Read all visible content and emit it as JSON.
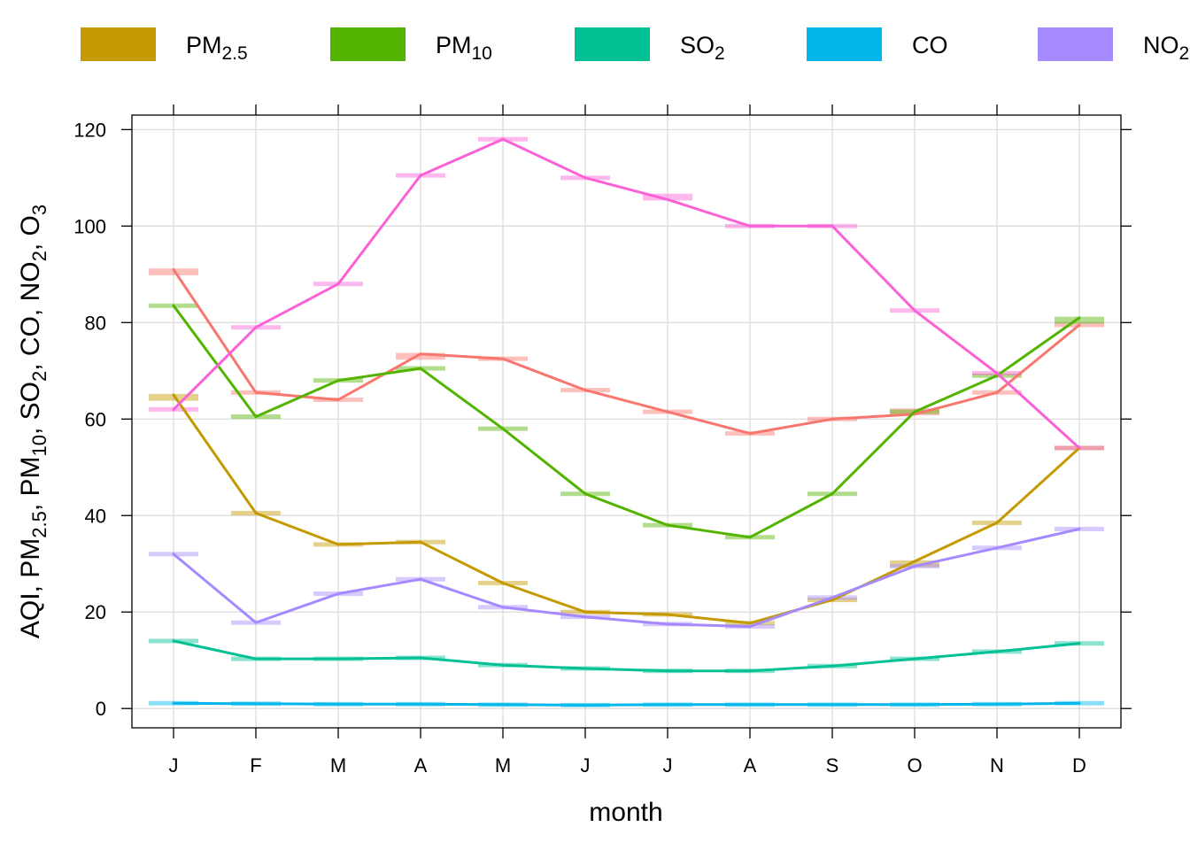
{
  "chart_data": {
    "type": "line",
    "xlabel": "month",
    "ylabel": {
      "parts": [
        {
          "text": "AQI, PM"
        },
        {
          "text": "2.5",
          "sub": true
        },
        {
          "text": ", PM"
        },
        {
          "text": "10",
          "sub": true
        },
        {
          "text": ", SO"
        },
        {
          "text": "2",
          "sub": true
        },
        {
          "text": ", CO, NO"
        },
        {
          "text": "2",
          "sub": true
        },
        {
          "text": ", O"
        },
        {
          "text": "3",
          "sub": true
        }
      ]
    },
    "categories": [
      "J",
      "F",
      "M",
      "A",
      "M",
      "J",
      "J",
      "A",
      "S",
      "O",
      "N",
      "D"
    ],
    "ylim": [
      -4,
      123
    ],
    "yticks": [
      0,
      20,
      40,
      60,
      80,
      100,
      120
    ],
    "grid": true,
    "legend": {
      "position": "top",
      "entries": [
        {
          "base": "PM",
          "sub": "2.5",
          "color": "#C49A00"
        },
        {
          "base": "PM",
          "sub": "10",
          "color": "#53B400"
        },
        {
          "base": "SO",
          "sub": "2",
          "color": "#00C094"
        },
        {
          "base": "CO",
          "sub": "",
          "color": "#00B6EB"
        },
        {
          "base": "NO",
          "sub": "2",
          "color": "#A58AFF"
        }
      ]
    },
    "series": [
      {
        "color": "#F8766D",
        "values": [
          91,
          65.5,
          64,
          73.5,
          72.5,
          66,
          61.5,
          57,
          60,
          61,
          65.5,
          79.5
        ],
        "markers": [
          90.5,
          65.5,
          64,
          73,
          72.5,
          66,
          61.5,
          57,
          60,
          61.5,
          65.5,
          79.5
        ]
      },
      {
        "color": "#C49A00",
        "values": [
          65,
          40.5,
          34,
          34.5,
          26,
          20,
          19.5,
          17.7,
          22.5,
          30.5,
          38.5,
          54
        ],
        "markers": [
          64.5,
          40.5,
          34,
          34.5,
          26,
          20,
          19.5,
          17.7,
          22.5,
          30,
          38.5,
          54
        ]
      },
      {
        "color": "#53B400",
        "values": [
          83.5,
          60.5,
          68,
          70.5,
          58,
          44.5,
          38,
          35.5,
          44.5,
          61.5,
          69,
          81
        ],
        "markers": [
          83.5,
          60.5,
          68,
          70.5,
          58,
          44.5,
          38,
          35.5,
          44.5,
          61.5,
          69,
          80.5
        ]
      },
      {
        "color": "#00C094",
        "values": [
          14,
          10.3,
          10.3,
          10.5,
          9,
          8.3,
          7.8,
          7.8,
          8.8,
          10.3,
          11.8,
          13.5
        ],
        "markers": [
          14,
          10.3,
          10.3,
          10.5,
          9,
          8.3,
          7.8,
          7.8,
          8.8,
          10.3,
          11.8,
          13.5
        ]
      },
      {
        "color": "#00B6EB",
        "values": [
          1.1,
          1.0,
          0.9,
          0.9,
          0.8,
          0.7,
          0.8,
          0.8,
          0.8,
          0.8,
          0.9,
          1.1
        ],
        "markers": [
          1.1,
          1.0,
          0.9,
          0.9,
          0.8,
          0.7,
          0.8,
          0.8,
          0.8,
          0.8,
          0.9,
          1.1
        ]
      },
      {
        "color": "#A58AFF",
        "values": [
          32,
          17.8,
          23.8,
          26.8,
          21,
          19,
          17.5,
          17,
          23,
          29.5,
          33.3,
          37.2
        ],
        "markers": [
          32,
          17.8,
          23.8,
          26.8,
          21,
          19,
          17.5,
          17,
          23,
          29.5,
          33.3,
          37.2
        ]
      },
      {
        "color": "#FB61D7",
        "values": [
          62,
          79,
          88,
          110.5,
          118,
          110,
          105.5,
          100,
          100,
          82.5,
          69.5,
          54
        ],
        "markers": [
          62,
          79,
          88,
          110.5,
          118,
          110,
          106,
          100,
          100,
          82.5,
          69.5,
          54
        ]
      }
    ]
  }
}
